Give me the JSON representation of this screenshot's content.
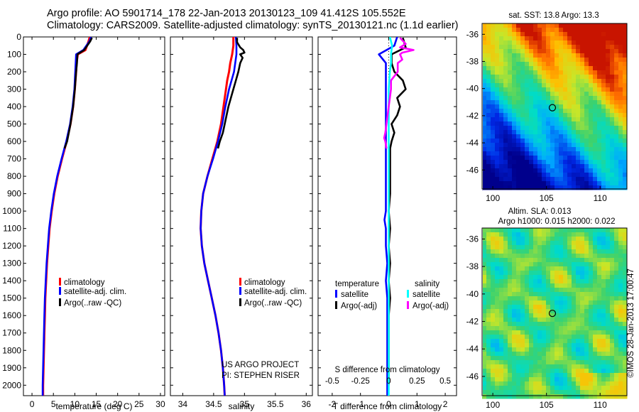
{
  "header": {
    "line1": "Argo profile: AO 5901714_178 22-Jan-2013 20130123_109 41.412S 105.552E",
    "line2": "Climatology: CARS2009. Satellite-adjusted climatology: synTS_20130121.nc (1.1d earlier)"
  },
  "colors": {
    "climatology": "#ff0000",
    "satellite": "#0000ff",
    "argo": "#000000",
    "satellite_salinity": "#00ffff",
    "argo_salinity": "#ff00ff"
  },
  "chart_data": [
    {
      "type": "line",
      "xlabel": "temperature (deg C)",
      "ylabel": "",
      "xlim": [
        -2,
        31
      ],
      "ylim": [
        2060,
        0
      ],
      "xticks": [
        0,
        5,
        10,
        15,
        20,
        25,
        30
      ],
      "yticks": [
        0,
        100,
        200,
        300,
        400,
        500,
        600,
        700,
        800,
        900,
        1000,
        1100,
        1200,
        1300,
        1400,
        1500,
        1600,
        1700,
        1800,
        1900,
        2000
      ],
      "legend": [
        "climatology",
        "satellite-adj. clim.",
        "Argo(..raw -QC)"
      ],
      "legend_position": "bottom-right",
      "series": [
        {
          "name": "climatology",
          "color": "#ff0000",
          "y": [
            0,
            25,
            75,
            100,
            150,
            200,
            300,
            400,
            500,
            600,
            700,
            800,
            900,
            1000,
            1100,
            1200,
            1300,
            1400,
            1500,
            1600,
            1700,
            1800,
            1900,
            2000,
            2060
          ],
          "x": [
            13.5,
            13.2,
            12.5,
            10.7,
            10.4,
            10.3,
            10.0,
            9.6,
            9.0,
            8.1,
            7.0,
            6.0,
            5.2,
            4.6,
            4.1,
            3.8,
            3.5,
            3.3,
            3.1,
            3.0,
            2.9,
            2.8,
            2.7,
            2.6,
            2.6
          ]
        },
        {
          "name": "satellite-adj. clim.",
          "color": "#0000ff",
          "y": [
            0,
            25,
            75,
            100,
            150,
            200,
            300,
            400,
            500,
            600,
            700,
            800,
            900,
            1000,
            1100,
            1200,
            1300,
            1400,
            1500,
            1600,
            1700,
            1800,
            1900,
            2000,
            2060
          ],
          "x": [
            13.8,
            13.4,
            12.0,
            10.3,
            10.2,
            10.1,
            9.9,
            9.5,
            8.9,
            8.0,
            6.9,
            5.9,
            5.1,
            4.5,
            4.0,
            3.7,
            3.4,
            3.2,
            3.0,
            2.9,
            2.8,
            2.7,
            2.6,
            2.5,
            2.5
          ]
        },
        {
          "name": "Argo(..raw -QC)",
          "color": "#000000",
          "y": [
            5,
            25,
            75,
            100,
            150,
            200,
            300,
            400,
            500,
            600,
            640
          ],
          "x": [
            14.0,
            13.6,
            12.2,
            10.6,
            10.5,
            10.3,
            10.0,
            9.6,
            9.0,
            8.2,
            7.6
          ]
        }
      ]
    },
    {
      "type": "line",
      "xlabel": "salinity",
      "xlim": [
        33.8,
        36.1
      ],
      "ylim": [
        2060,
        0
      ],
      "xticks": [
        34,
        34.5,
        35,
        35.5,
        36
      ],
      "xticklabels": [
        "34",
        "34.5",
        "35",
        "35.5",
        "36"
      ],
      "legend": [
        "climatology",
        "satellite-adj. clim.",
        "Argo(..raw -QC)"
      ],
      "legend_position": "bottom-right",
      "annotations": [
        "US ARGO PROJECT",
        "PI: STEPHEN RISER"
      ],
      "series": [
        {
          "name": "climatology",
          "color": "#ff0000",
          "y": [
            0,
            50,
            100,
            150,
            200,
            250,
            300,
            400,
            500,
            600,
            700,
            800,
            900,
            1000,
            1100,
            1200,
            1300,
            1400,
            1500,
            1600,
            1700,
            1800,
            1900,
            2000,
            2060
          ],
          "x": [
            34.82,
            34.82,
            34.8,
            34.77,
            34.75,
            34.72,
            34.7,
            34.66,
            34.62,
            34.56,
            34.48,
            34.4,
            34.33,
            34.3,
            34.29,
            34.31,
            34.35,
            34.41,
            34.47,
            34.53,
            34.58,
            34.62,
            34.65,
            34.67,
            34.68
          ]
        },
        {
          "name": "satellite-adj. clim.",
          "color": "#0000ff",
          "y": [
            0,
            50,
            100,
            150,
            200,
            250,
            300,
            400,
            500,
            600,
            700,
            800,
            900,
            1000,
            1100,
            1200,
            1300,
            1400,
            1500,
            1600,
            1700,
            1800,
            1900,
            2000,
            2060
          ],
          "x": [
            34.86,
            34.87,
            34.87,
            34.85,
            34.83,
            34.79,
            34.75,
            34.69,
            34.64,
            34.57,
            34.49,
            34.4,
            34.33,
            34.3,
            34.29,
            34.31,
            34.35,
            34.41,
            34.47,
            34.53,
            34.58,
            34.62,
            34.65,
            34.67,
            34.68
          ]
        },
        {
          "name": "Argo(..raw -QC)",
          "color": "#000000",
          "y": [
            5,
            30,
            60,
            75,
            90,
            100,
            120,
            150,
            200,
            250,
            300,
            350,
            400,
            450,
            500,
            550,
            600,
            640
          ],
          "x": [
            34.88,
            34.88,
            34.93,
            34.98,
            35.0,
            34.93,
            34.97,
            34.93,
            34.9,
            34.86,
            34.82,
            34.78,
            34.74,
            34.71,
            34.68,
            34.65,
            34.6,
            34.57
          ]
        }
      ]
    },
    {
      "type": "line",
      "xlabel": "T difference from climatology",
      "top_xlabel": "S difference from climatology",
      "xlim": [
        -2.5,
        2.4
      ],
      "ylim": [
        2060,
        0
      ],
      "xticks": [
        -2,
        -1,
        0,
        1,
        2
      ],
      "xticklabels": [
        "-2",
        "-1",
        "0",
        "1",
        "2"
      ],
      "top_xticks": [
        -0.5,
        -0.25,
        0,
        0.25,
        0.5
      ],
      "top_xticklabels": [
        "-0.5",
        "-0.25",
        "0",
        "0.25",
        "0.5"
      ],
      "legend_titles": [
        "temperature",
        "salinity"
      ],
      "legend": [
        "satellite",
        "Argo(-adj)",
        "satellite",
        "Argo(-adj)"
      ],
      "legend_position": "bottom",
      "series": [
        {
          "name": "satellite",
          "color": "#0000ff",
          "y": [
            0,
            50,
            100,
            150,
            200,
            300,
            400,
            500,
            600,
            700,
            800,
            900,
            1000,
            1050,
            1100,
            1200,
            1300,
            1400,
            1500,
            1600,
            1700,
            1800,
            1900,
            2000,
            2060
          ],
          "x": [
            0.3,
            0.2,
            -0.35,
            -0.1,
            -0.1,
            -0.1,
            -0.1,
            -0.1,
            -0.1,
            -0.1,
            -0.1,
            -0.1,
            -0.1,
            -0.15,
            -0.1,
            -0.1,
            -0.05,
            -0.1,
            -0.05,
            -0.05,
            -0.05,
            -0.05,
            -0.05,
            -0.05,
            -0.05
          ]
        },
        {
          "name": "Argo(-adj)",
          "color": "#000000",
          "y": [
            5,
            60,
            100,
            150,
            200,
            250,
            300,
            350,
            400,
            450,
            500,
            550,
            600,
            640,
            700,
            800,
            900,
            1000,
            1100,
            1200,
            1300,
            1400,
            1500,
            1600,
            1700,
            1800,
            1900,
            2000
          ],
          "x": [
            0.5,
            0.6,
            0.1,
            0.1,
            0.2,
            0.5,
            0.6,
            0.3,
            0.4,
            0.3,
            0.1,
            0.2,
            0.1,
            0.05,
            0.05,
            0.05,
            0.05,
            0.0,
            0.05,
            0.0,
            0.05,
            0.0,
            0.05,
            0.0,
            0.0,
            0.0,
            0.0,
            0.0
          ]
        },
        {
          "name": "satellite",
          "color": "#00ffff",
          "axis": "salinity",
          "y": [
            0,
            50,
            100,
            150,
            200,
            300,
            400,
            500,
            600,
            700,
            800,
            900,
            1000,
            1100,
            1200,
            1300,
            1400,
            1500,
            1600,
            1700,
            1800,
            1900,
            2000,
            2060
          ],
          "x": [
            0.01,
            0.03,
            0.02,
            0.02,
            0.01,
            0.0,
            0.0,
            0.0,
            0.0,
            0.0,
            0.0,
            0.0,
            0.0,
            0.0,
            0.0,
            0.0,
            0.0,
            0.0,
            0.0,
            0.0,
            0.0,
            0.0,
            0.0,
            0.0
          ]
        },
        {
          "name": "Argo(-adj)",
          "color": "#ff00ff",
          "axis": "salinity",
          "y": [
            5,
            40,
            60,
            75,
            90,
            100,
            130,
            150,
            200,
            250,
            300,
            400,
            500,
            550,
            580,
            600,
            640
          ],
          "x": [
            0.1,
            0.15,
            0.1,
            0.22,
            0.12,
            0.1,
            0.12,
            0.08,
            0.08,
            0.02,
            0.02,
            0.0,
            -0.02,
            -0.03,
            -0.04,
            -0.03,
            -0.02
          ]
        }
      ]
    },
    {
      "type": "heatmap",
      "title": "sat. SST: 13.8  Argo: 13.3",
      "xlim": [
        99,
        112.5
      ],
      "ylim": [
        -47.4,
        -35.2
      ],
      "xticks": [
        100,
        105,
        110
      ],
      "yticks": [
        -36,
        -38,
        -40,
        -42,
        -44,
        -46
      ],
      "marker": {
        "lon": 105.552,
        "lat": -41.412
      }
    },
    {
      "type": "heatmap",
      "title": "Altim. SLA: 0.013",
      "subtitle": "Argo h1000: 0.015  h2000: 0.022",
      "xlim": [
        99,
        112.5
      ],
      "ylim": [
        -47.4,
        -35.2
      ],
      "xticks": [
        100,
        105,
        110
      ],
      "yticks": [
        -36,
        -38,
        -40,
        -42,
        -44,
        -46
      ],
      "marker": {
        "lon": 105.552,
        "lat": -41.412
      }
    }
  ],
  "side_label": "©IMOS 28-Jan-2013 17:00:47"
}
